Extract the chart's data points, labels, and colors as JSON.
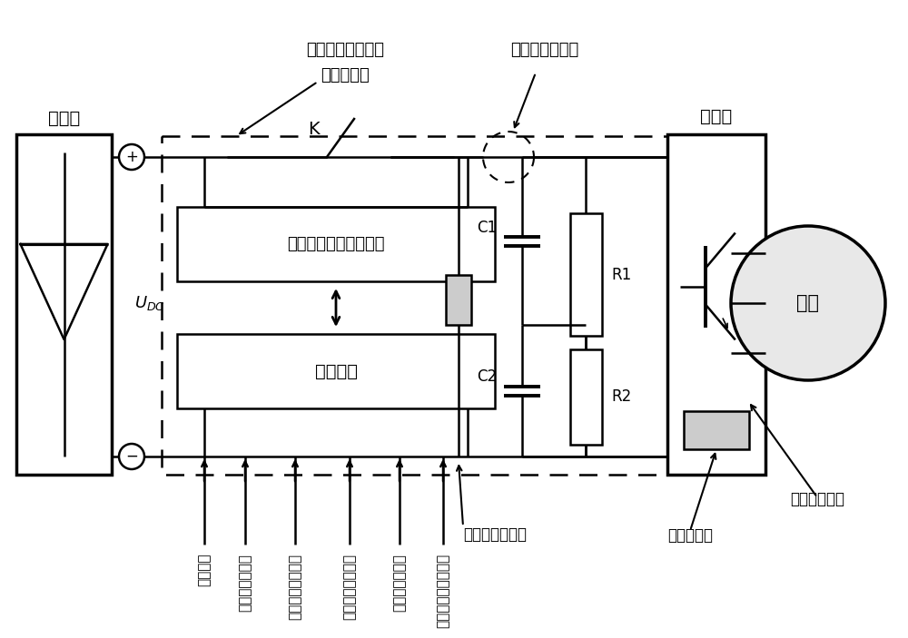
{
  "labels": {
    "zhengliuqiao": "整流桥",
    "niubianqi": "逆变器",
    "dianji": "电机",
    "K": "K",
    "box1_text": "预充电和故障保护电路",
    "box2_text": "控制单元",
    "C1": "C1",
    "C2": "C2",
    "R1": "R1",
    "R2": "R2",
    "title_line1": "预充电和故障保护",
    "title_line2": "一体化装置",
    "busbar_current": "母线电流传感器",
    "busbar_voltage": "母线电压传感器",
    "phase_current": "相电流传感器",
    "temp_sensor": "温度传感器",
    "signal1": "复位信号",
    "signal2": "预充电阈值信号",
    "signal3": "母线电压状态信号",
    "signal4": "母线电流状态信号",
    "signal5": "相电流状态信号",
    "signal6": "逆变器温度状态信号",
    "signal7": "母线电压传感器"
  },
  "colors": {
    "black": "#000000",
    "white": "#ffffff",
    "light_gray": "#cccccc"
  }
}
